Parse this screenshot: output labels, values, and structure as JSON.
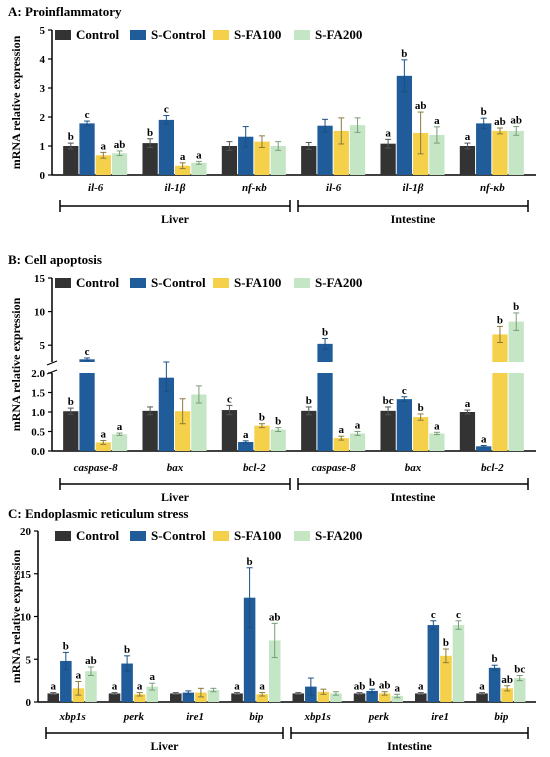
{
  "legend": [
    {
      "label": "Control",
      "color": "#333333"
    },
    {
      "label": "S-Control",
      "color": "#1f5c99"
    },
    {
      "label": "S-FA100",
      "color": "#f5d04a"
    },
    {
      "label": "S-FA200",
      "color": "#c5e6c5"
    }
  ],
  "ylabel": "mRNA relative expression",
  "colors": {
    "Control": "#333333",
    "S-Control": "#1f5c99",
    "S-FA100": "#f5d04a",
    "S-FA200": "#c5e6c5"
  },
  "chart_data": [
    {
      "type": "bar",
      "title": "A: Proinflammatory",
      "ylabel": "mRNA relative expression",
      "ylim": [
        0,
        5
      ],
      "yticks": [
        "0",
        "1",
        "2",
        "3",
        "4",
        "5"
      ],
      "categories": [
        "il-6",
        "il-1β",
        "nf-κb",
        "il-6",
        "il-1β",
        "nf-κb"
      ],
      "tissues": [
        {
          "label": "Liver",
          "from": 0,
          "to": 2
        },
        {
          "label": "Intestine",
          "from": 3,
          "to": 5
        }
      ],
      "series": [
        {
          "name": "Control",
          "values": [
            1.0,
            1.1,
            1.0,
            1.0,
            1.08,
            1.0
          ],
          "errors": [
            0.1,
            0.15,
            0.15,
            0.12,
            0.15,
            0.1
          ],
          "letters": [
            "b",
            "b",
            "",
            "",
            "a",
            "a"
          ]
        },
        {
          "name": "S-Control",
          "values": [
            1.78,
            1.9,
            1.32,
            1.7,
            3.42,
            1.78
          ],
          "errors": [
            0.08,
            0.15,
            0.35,
            0.22,
            0.55,
            0.18
          ],
          "letters": [
            "c",
            "c",
            "",
            "",
            "b",
            "b"
          ]
        },
        {
          "name": "S-FA100",
          "values": [
            0.68,
            0.32,
            1.15,
            1.52,
            1.45,
            1.52
          ],
          "errors": [
            0.1,
            0.1,
            0.2,
            0.45,
            0.72,
            0.1
          ],
          "letters": [
            "a",
            "a",
            "",
            "",
            "ab",
            "ab"
          ]
        },
        {
          "name": "S-FA200",
          "values": [
            0.75,
            0.42,
            1.0,
            1.72,
            1.38,
            1.52
          ],
          "errors": [
            0.08,
            0.05,
            0.15,
            0.25,
            0.28,
            0.15
          ],
          "letters": [
            "ab",
            "a",
            "",
            "",
            "a",
            "ab"
          ]
        }
      ]
    },
    {
      "type": "bar",
      "title": "B: Cell apoptosis",
      "ylabel": "mRNA relative expression",
      "broken_axis": true,
      "ylim_lower": [
        0,
        2
      ],
      "ylim_upper": [
        2.5,
        15
      ],
      "yticks": [
        "0.0",
        "0.5",
        "1.0",
        "1.5",
        "2.0",
        "5",
        "10",
        "15"
      ],
      "categories": [
        "caspase-8",
        "bax",
        "bcl-2",
        "caspase-8",
        "bax",
        "bcl-2"
      ],
      "tissues": [
        {
          "label": "Liver",
          "from": 0,
          "to": 2
        },
        {
          "label": "Intestine",
          "from": 3,
          "to": 5
        }
      ],
      "series": [
        {
          "name": "Control",
          "values": [
            1.02,
            1.03,
            1.05,
            1.03,
            1.03,
            1.0
          ],
          "errors": [
            0.08,
            0.1,
            0.12,
            0.1,
            0.1,
            0.05
          ],
          "letters": [
            "b",
            "",
            "c",
            "b",
            "bc",
            "a"
          ]
        },
        {
          "name": "S-Control",
          "values": [
            2.9,
            1.88,
            0.23,
            5.2,
            1.33,
            0.12
          ],
          "errors": [
            0.2,
            0.35,
            0.03,
            0.8,
            0.06,
            0.02
          ],
          "letters": [
            "c",
            "",
            "a",
            "b",
            "c",
            "a"
          ]
        },
        {
          "name": "S-FA100",
          "values": [
            0.22,
            1.02,
            0.65,
            0.33,
            0.87,
            6.6
          ],
          "errors": [
            0.05,
            0.32,
            0.05,
            0.05,
            0.08,
            1.2
          ],
          "letters": [
            "a",
            "",
            "b",
            "a",
            "b",
            "b"
          ]
        },
        {
          "name": "S-FA200",
          "values": [
            0.43,
            1.45,
            0.55,
            0.45,
            0.45,
            8.5
          ],
          "errors": [
            0.03,
            0.22,
            0.05,
            0.05,
            0.03,
            1.3
          ],
          "letters": [
            "a",
            "",
            "b",
            "a",
            "a",
            "b"
          ]
        }
      ]
    },
    {
      "type": "bar",
      "title": "C: Endoplasmic reticulum stress",
      "ylabel": "mRNA relative expression",
      "ylim": [
        0,
        20
      ],
      "yticks": [
        "0",
        "5",
        "10",
        "15",
        "20"
      ],
      "categories": [
        "xbp1s",
        "perk",
        "ire1",
        "bip",
        "xbp1s",
        "perk",
        "ire1",
        "bip"
      ],
      "tissues": [
        {
          "label": "Liver",
          "from": 0,
          "to": 3
        },
        {
          "label": "Intestine",
          "from": 4,
          "to": 7
        }
      ],
      "series": [
        {
          "name": "Control",
          "values": [
            1.0,
            1.0,
            1.0,
            1.0,
            1.0,
            1.0,
            1.0,
            1.0
          ],
          "errors": [
            0.1,
            0.1,
            0.1,
            0.1,
            0.1,
            0.1,
            0.1,
            0.1
          ],
          "letters": [
            "a",
            "a",
            "",
            "a",
            "",
            "ab",
            "a",
            "a"
          ]
        },
        {
          "name": "S-Control",
          "values": [
            4.8,
            4.5,
            1.1,
            12.2,
            1.8,
            1.3,
            9.0,
            4.0
          ],
          "errors": [
            1.0,
            0.9,
            0.2,
            3.5,
            1.0,
            0.2,
            0.5,
            0.3
          ],
          "letters": [
            "b",
            "b",
            "",
            "b",
            "",
            "b",
            "c",
            "b"
          ]
        },
        {
          "name": "S-FA100",
          "values": [
            1.6,
            0.9,
            1.1,
            0.9,
            1.2,
            1.0,
            5.4,
            1.6
          ],
          "errors": [
            0.8,
            0.2,
            0.5,
            0.2,
            0.3,
            0.2,
            0.8,
            0.3
          ],
          "letters": [
            "a",
            "a",
            "",
            "a",
            "",
            "ab",
            "b",
            "ab"
          ]
        },
        {
          "name": "S-FA200",
          "values": [
            3.6,
            1.8,
            1.4,
            7.2,
            1.0,
            0.7,
            9.0,
            2.8
          ],
          "errors": [
            0.5,
            0.4,
            0.2,
            2.0,
            0.2,
            0.2,
            0.5,
            0.3
          ],
          "letters": [
            "ab",
            "a",
            "",
            "ab",
            "",
            "a",
            "c",
            "bc"
          ]
        }
      ]
    }
  ]
}
